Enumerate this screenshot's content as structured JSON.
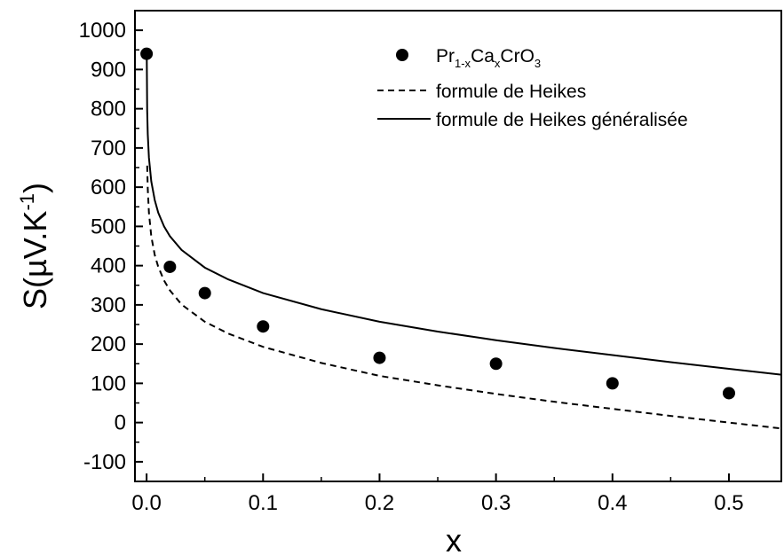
{
  "chart_data": {
    "type": "scatter",
    "xlabel": "x",
    "ylabel": {
      "main": "S(µV.K",
      "sup": "-1",
      "close": ")"
    },
    "xlim": [
      -0.01,
      0.545
    ],
    "ylim": [
      -150,
      1050
    ],
    "x_ticks": [
      0.0,
      0.1,
      0.2,
      0.3,
      0.4,
      0.5
    ],
    "x_tick_labels": [
      "0.0",
      "0.1",
      "0.2",
      "0.3",
      "0.4",
      "0.5"
    ],
    "y_ticks": [
      -100,
      0,
      100,
      200,
      300,
      400,
      500,
      600,
      700,
      800,
      900,
      1000
    ],
    "y_tick_labels": [
      "-100",
      "0",
      "100",
      "200",
      "300",
      "400",
      "500",
      "600",
      "700",
      "800",
      "900",
      "1000"
    ],
    "grid": false,
    "legend_position": "top-right",
    "series": [
      {
        "name": "Pr1-xCaxCrO3",
        "legend": {
          "base": "Pr",
          "sub1": "1-x",
          "mid": "Ca",
          "sub2": "x",
          "mid2": "CrO",
          "sub3": "3"
        },
        "kind": "scatter",
        "color": "#000000",
        "x": [
          0.0,
          0.02,
          0.05,
          0.1,
          0.2,
          0.3,
          0.4,
          0.5
        ],
        "y": [
          940,
          397,
          330,
          245,
          165,
          150,
          100,
          75
        ]
      },
      {
        "name": "formule de Heikes",
        "kind": "line",
        "dash": "dashed",
        "color": "#000000",
        "x": [
          0.0005,
          0.001,
          0.002,
          0.004,
          0.007,
          0.01,
          0.015,
          0.02,
          0.03,
          0.05,
          0.07,
          0.1,
          0.15,
          0.2,
          0.25,
          0.3,
          0.35,
          0.4,
          0.45,
          0.5,
          0.545
        ],
        "y": [
          655,
          595,
          535,
          475,
          427,
          397,
          362,
          337,
          301,
          257,
          227,
          193,
          152,
          119,
          95,
          73,
          53,
          35,
          17,
          0,
          -15
        ]
      },
      {
        "name": "formule de Heikes généralisée",
        "kind": "line",
        "dash": "solid",
        "color": "#000000",
        "x": [
          0.0001,
          0.0005,
          0.001,
          0.002,
          0.004,
          0.007,
          0.01,
          0.015,
          0.02,
          0.03,
          0.05,
          0.07,
          0.1,
          0.15,
          0.2,
          0.25,
          0.3,
          0.35,
          0.4,
          0.45,
          0.5,
          0.545
        ],
        "y": [
          945,
          795,
          735,
          675,
          615,
          567,
          535,
          500,
          475,
          440,
          395,
          365,
          330,
          289,
          257,
          232,
          210,
          190,
          172,
          154,
          137,
          122
        ]
      }
    ]
  }
}
